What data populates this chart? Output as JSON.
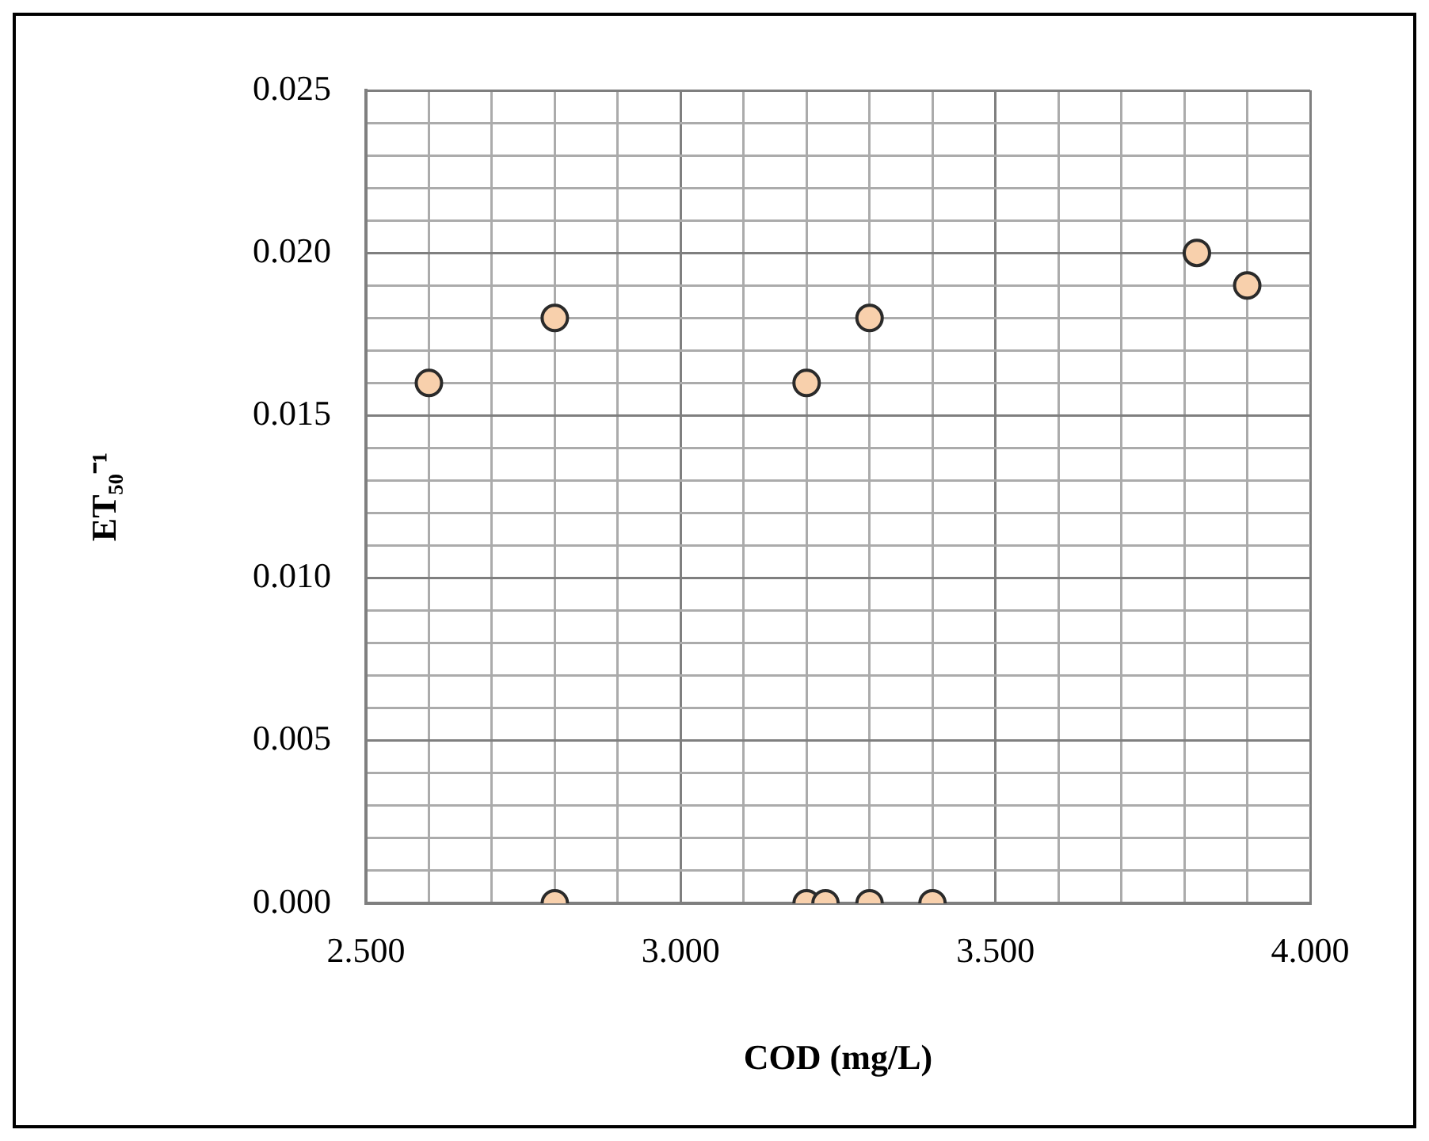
{
  "chart_data": {
    "type": "scatter",
    "xlabel": "COD (mg/L)",
    "ylabel": "ET₅₀⁻¹",
    "x": [
      2.6,
      2.8,
      3.2,
      3.3,
      3.82,
      3.9,
      2.8,
      3.2,
      3.23,
      3.3,
      3.4
    ],
    "values": [
      0.016,
      0.018,
      0.016,
      0.018,
      0.02,
      0.019,
      0,
      0,
      0,
      0,
      0
    ],
    "color": "#f8d0ac",
    "marker": "circle",
    "grid": true,
    "xlim": [
      2.5,
      4.0
    ],
    "xticks": [
      {
        "value": 2.5,
        "label": "2.500"
      },
      {
        "value": 2.6,
        "label": null
      },
      {
        "value": 2.7,
        "label": null
      },
      {
        "value": 2.8,
        "label": null
      },
      {
        "value": 2.9,
        "label": null
      },
      {
        "value": 3.0,
        "label": "3.000"
      },
      {
        "value": 3.1,
        "label": null
      },
      {
        "value": 3.2,
        "label": null
      },
      {
        "value": 3.3,
        "label": null
      },
      {
        "value": 3.4,
        "label": null
      },
      {
        "value": 3.5,
        "label": "3.500"
      },
      {
        "value": 3.6,
        "label": null
      },
      {
        "value": 3.7,
        "label": null
      },
      {
        "value": 3.8,
        "label": null
      },
      {
        "value": 3.9,
        "label": null
      },
      {
        "value": 4.0,
        "label": "4.000"
      }
    ],
    "ylim": [
      0,
      0.025
    ],
    "yticks": [
      {
        "value": 0,
        "label": "0.000"
      },
      {
        "value": 0.001,
        "label": null
      },
      {
        "value": 0.002,
        "label": null
      },
      {
        "value": 0.003,
        "label": null
      },
      {
        "value": 0.004,
        "label": null
      },
      {
        "value": 0.005,
        "label": "0.005"
      },
      {
        "value": 0.006,
        "label": null
      },
      {
        "value": 0.007,
        "label": null
      },
      {
        "value": 0.008,
        "label": null
      },
      {
        "value": 0.009,
        "label": null
      },
      {
        "value": 0.01,
        "label": "0.010"
      },
      {
        "value": 0.011,
        "label": null
      },
      {
        "value": 0.012,
        "label": null
      },
      {
        "value": 0.013,
        "label": null
      },
      {
        "value": 0.014,
        "label": null
      },
      {
        "value": 0.015,
        "label": "0.015"
      },
      {
        "value": 0.016,
        "label": null
      },
      {
        "value": 0.017,
        "label": null
      },
      {
        "value": 0.018,
        "label": null
      },
      {
        "value": 0.019,
        "label": null
      },
      {
        "value": 0.02,
        "label": "0.020"
      },
      {
        "value": 0.021,
        "label": null
      },
      {
        "value": 0.022,
        "label": null
      },
      {
        "value": 0.023,
        "label": null
      },
      {
        "value": 0.024,
        "label": null
      },
      {
        "value": 0.025,
        "label": "0.025"
      }
    ]
  }
}
